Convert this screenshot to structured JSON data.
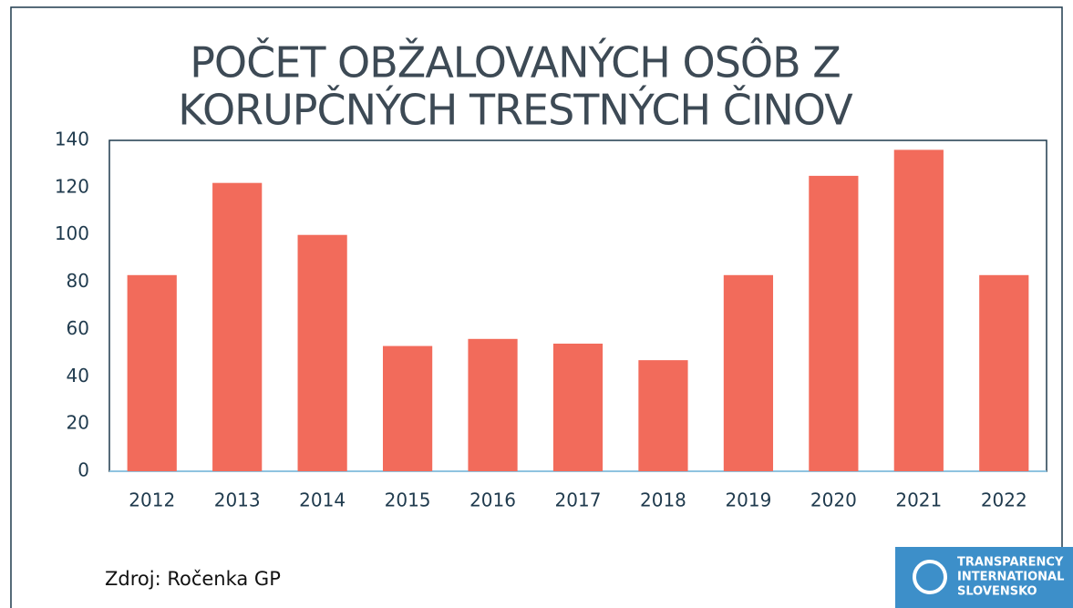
{
  "chart_data": {
    "type": "bar",
    "title": [
      "POČET OBŽALOVANÝCH OSÔB Z",
      "KORUPČNÝCH TRESTNÝCH ČINOV"
    ],
    "categories": [
      "2012",
      "2013",
      "2014",
      "2015",
      "2016",
      "2017",
      "2018",
      "2019",
      "2020",
      "2021",
      "2022"
    ],
    "values": [
      83,
      122,
      100,
      53,
      56,
      54,
      47,
      83,
      125,
      136,
      83
    ],
    "color": "#f26b5b",
    "ylim": [
      0,
      140
    ],
    "yticks": [
      0,
      20,
      40,
      60,
      80,
      100,
      120,
      140
    ],
    "grid": false,
    "source": "Zdroj: Ročenka GP"
  },
  "logo": {
    "lines": [
      "TRANSPARENCY",
      "INTERNATIONAL",
      "SLOVENSKO"
    ]
  }
}
